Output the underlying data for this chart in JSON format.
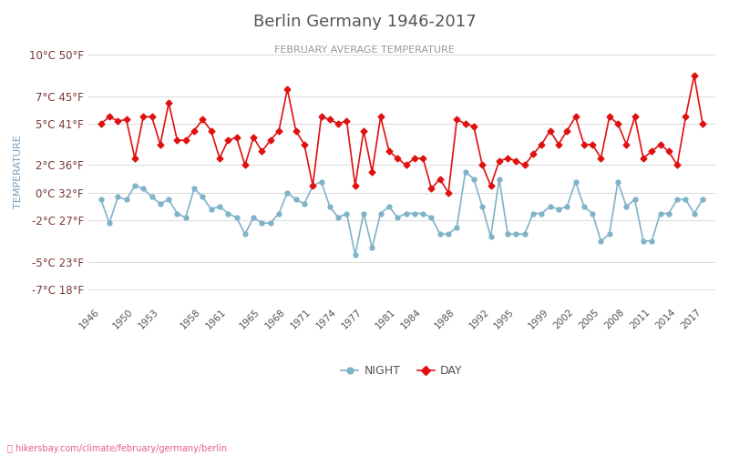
{
  "title": "Berlin Germany 1946-2017",
  "subtitle": "FEBRUARY AVERAGE TEMPERATURE",
  "ylabel": "TEMPERATURE",
  "xlabel_url": "hikersbay.com/climate/february/germany/berlin",
  "background_color": "#ffffff",
  "title_color": "#555555",
  "subtitle_color": "#999999",
  "ylabel_color": "#7a9db5",
  "ytick_color": "#7a3535",
  "grid_color": "#dddddd",
  "years": [
    1946,
    1947,
    1948,
    1949,
    1950,
    1951,
    1952,
    1953,
    1954,
    1955,
    1956,
    1957,
    1958,
    1959,
    1960,
    1961,
    1962,
    1963,
    1964,
    1965,
    1966,
    1967,
    1968,
    1969,
    1970,
    1971,
    1972,
    1973,
    1974,
    1975,
    1976,
    1977,
    1978,
    1979,
    1980,
    1981,
    1982,
    1983,
    1984,
    1985,
    1986,
    1987,
    1988,
    1989,
    1990,
    1991,
    1992,
    1993,
    1994,
    1995,
    1996,
    1997,
    1998,
    1999,
    2000,
    2001,
    2002,
    2003,
    2004,
    2005,
    2006,
    2007,
    2008,
    2009,
    2010,
    2011,
    2012,
    2013,
    2014,
    2015,
    2016,
    2017
  ],
  "night_temps": [
    -0.5,
    -2.2,
    -0.3,
    -0.5,
    0.5,
    0.3,
    -0.3,
    -0.8,
    -0.5,
    -1.5,
    -1.8,
    0.3,
    -0.3,
    -1.2,
    -1.0,
    -1.5,
    -1.8,
    -3.0,
    -1.8,
    -2.2,
    -2.2,
    -1.5,
    0.0,
    -0.5,
    -0.8,
    0.5,
    0.8,
    -1.0,
    -1.8,
    -1.5,
    -4.5,
    -1.5,
    -4.0,
    -1.5,
    -1.0,
    -1.8,
    -1.5,
    -1.5,
    -1.5,
    -1.8,
    -3.0,
    -3.0,
    -2.5,
    1.5,
    1.0,
    -1.0,
    -3.2,
    1.0,
    -3.0,
    -3.0,
    -3.0,
    -1.5,
    -1.5,
    -1.0,
    -1.2,
    -1.0,
    0.8,
    -1.0,
    -1.5,
    -3.5,
    -3.0,
    0.8,
    -1.0,
    -0.5,
    -3.5,
    -3.5,
    -1.5,
    -1.5,
    -0.5,
    -0.5,
    -1.5,
    -0.5
  ],
  "day_temps": [
    5.0,
    5.5,
    5.2,
    5.3,
    2.5,
    5.5,
    5.5,
    3.5,
    6.5,
    3.8,
    3.8,
    4.5,
    5.3,
    4.5,
    2.5,
    3.8,
    4.0,
    2.0,
    4.0,
    3.0,
    3.8,
    4.5,
    7.5,
    4.5,
    3.5,
    0.5,
    5.5,
    5.3,
    5.0,
    5.2,
    0.5,
    4.5,
    1.5,
    5.5,
    3.0,
    2.5,
    2.0,
    2.5,
    2.5,
    0.3,
    1.0,
    0.0,
    5.3,
    5.0,
    4.8,
    2.0,
    0.5,
    2.3,
    2.5,
    2.3,
    2.0,
    2.8,
    3.5,
    4.5,
    3.5,
    4.5,
    5.5,
    3.5,
    3.5,
    2.5,
    5.5,
    5.0,
    3.5,
    5.5,
    2.5,
    3.0,
    3.5,
    3.0,
    2.0,
    5.5,
    8.5,
    5.0
  ],
  "night_color": "#7fb3c8",
  "day_color": "#e01010",
  "night_marker": "o",
  "day_marker": "D",
  "yticks_c": [
    -7,
    -5,
    -2,
    0,
    2,
    5,
    7,
    10
  ],
  "yticks_f": [
    18,
    23,
    27,
    32,
    36,
    41,
    45,
    50
  ],
  "ylim": [
    -8,
    11
  ],
  "xlim": [
    1944.5,
    2018.5
  ],
  "xtick_years": [
    1946,
    1950,
    1953,
    1958,
    1961,
    1965,
    1968,
    1971,
    1974,
    1977,
    1981,
    1984,
    1988,
    1992,
    1995,
    1999,
    2002,
    2005,
    2008,
    2011,
    2014,
    2017
  ]
}
